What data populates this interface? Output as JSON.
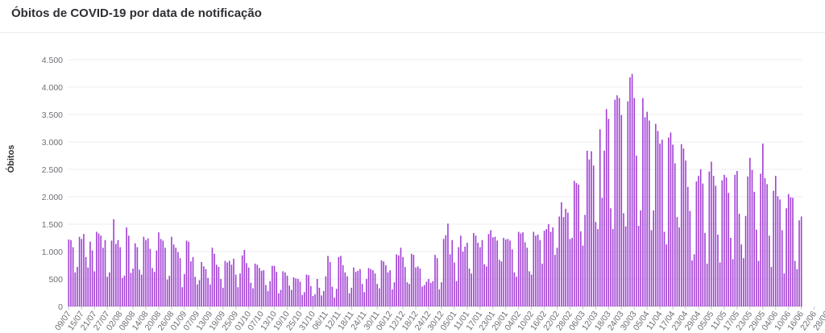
{
  "title": "Óbitos de COVID-19 por data de notificação",
  "colors": {
    "bar": "#a13fd4",
    "grid": "#ececf0",
    "axis": "#c8c8cf",
    "text": "#6e6e76"
  },
  "chart_data": {
    "type": "bar",
    "title": "Óbitos de COVID-19 por data de notificação",
    "xlabel": "",
    "ylabel": "Óbitos",
    "ylim": [
      0,
      4500
    ],
    "yticks": [
      0,
      500,
      1000,
      1500,
      2000,
      2500,
      3000,
      3500,
      4000,
      4500
    ],
    "ytick_labels": [
      "0",
      "500",
      "1.000",
      "1.500",
      "2.000",
      "2.500",
      "3.000",
      "3.500",
      "4.000",
      "4.500"
    ],
    "grid": true,
    "legend": "none",
    "x_tick_labels": [
      "09/07",
      "15/07",
      "21/07",
      "27/07",
      "02/08",
      "08/08",
      "14/08",
      "20/08",
      "26/08",
      "01/09",
      "07/09",
      "13/09",
      "19/09",
      "25/09",
      "01/10",
      "07/10",
      "13/10",
      "19/10",
      "25/10",
      "31/10",
      "06/11",
      "12/11",
      "18/11",
      "24/11",
      "30/11",
      "06/12",
      "12/12",
      "18/12",
      "24/12",
      "30/12",
      "05/01",
      "11/01",
      "17/01",
      "23/01",
      "29/01",
      "04/02",
      "10/02",
      "16/02",
      "22/02",
      "28/02",
      "06/03",
      "12/03",
      "18/03",
      "24/03",
      "30/03",
      "05/04",
      "11/04",
      "17/04",
      "23/04",
      "29/04",
      "05/05",
      "11/05",
      "17/05",
      "23/05",
      "29/05",
      "04/06",
      "10/06",
      "16/06",
      "22/06",
      "28/06",
      "04/07"
    ],
    "values": [
      1220,
      1210,
      1080,
      620,
      720,
      1270,
      1230,
      1320,
      900,
      710,
      1180,
      1020,
      640,
      1360,
      1330,
      1290,
      1070,
      1210,
      540,
      620,
      1200,
      1590,
      1140,
      1210,
      1080,
      520,
      560,
      1440,
      1290,
      610,
      690,
      1150,
      1080,
      670,
      580,
      1270,
      1210,
      1240,
      1050,
      700,
      630,
      1020,
      1350,
      1230,
      1200,
      1070,
      490,
      560,
      1270,
      1130,
      1070,
      990,
      880,
      350,
      590,
      1200,
      1180,
      820,
      900,
      540,
      400,
      480,
      810,
      730,
      680,
      520,
      400,
      1070,
      960,
      760,
      720,
      500,
      340,
      830,
      800,
      830,
      760,
      870,
      580,
      350,
      600,
      930,
      1030,
      790,
      710,
      430,
      330,
      780,
      760,
      700,
      650,
      660,
      390,
      280,
      460,
      740,
      740,
      630,
      240,
      300,
      640,
      620,
      560,
      380,
      300,
      530,
      510,
      500,
      450,
      210,
      260,
      580,
      570,
      370,
      190,
      220,
      500,
      340,
      200,
      280,
      550,
      920,
      810,
      360,
      160,
      320,
      900,
      920,
      750,
      620,
      550,
      240,
      340,
      710,
      630,
      650,
      680,
      410,
      260,
      500,
      700,
      680,
      660,
      600,
      410,
      330,
      840,
      820,
      750,
      620,
      660,
      310,
      440,
      950,
      930,
      1070,
      900,
      720,
      440,
      410,
      960,
      940,
      710,
      730,
      690,
      360,
      390,
      450,
      500,
      430,
      460,
      940,
      880,
      310,
      440,
      1230,
      1300,
      1510,
      950,
      1210,
      800,
      460,
      1080,
      1290,
      1000,
      1090,
      1160,
      690,
      600,
      1340,
      1290,
      1160,
      1080,
      1210,
      770,
      730,
      1320,
      1390,
      1260,
      1270,
      1200,
      850,
      820,
      1250,
      1220,
      1230,
      1200,
      1040,
      620,
      540,
      1360,
      1330,
      1350,
      1170,
      1070,
      640,
      580,
      1360,
      1290,
      1310,
      1210,
      780,
      1380,
      1410,
      1500,
      1360,
      1440,
      940,
      1070,
      1640,
      1900,
      1630,
      1780,
      1710,
      1230,
      1250,
      2290,
      2250,
      2220,
      1370,
      1110,
      1670,
      2840,
      2680,
      2830,
      2570,
      1540,
      1410,
      3230,
      1980,
      2840,
      3600,
      3420,
      1790,
      1410,
      3770,
      3850,
      3800,
      3490,
      1700,
      1460,
      3740,
      4180,
      4240,
      3800,
      2750,
      1470,
      1750,
      3800,
      3450,
      3550,
      3390,
      1390,
      1750,
      3330,
      3200,
      2970,
      3040,
      1360,
      1130,
      3080,
      3170,
      2950,
      2610,
      1630,
      1440,
      2960,
      2880,
      2660,
      2180,
      1740,
      840,
      950,
      2280,
      2380,
      2500,
      2240,
      1340,
      780,
      2460,
      2640,
      2380,
      2200,
      1310,
      800,
      2300,
      2400,
      2350,
      2070,
      1250,
      860,
      2400,
      2470,
      1690,
      1130,
      880,
      1650,
      2370,
      2710,
      2490,
      2090,
      1400,
      830,
      2420,
      2970,
      2340,
      2230,
      1290,
      720,
      2110,
      2380,
      2010,
      1950,
      1390,
      600,
      1790,
      2050,
      1990,
      1980,
      830,
      680,
      1570,
      1640
    ]
  }
}
